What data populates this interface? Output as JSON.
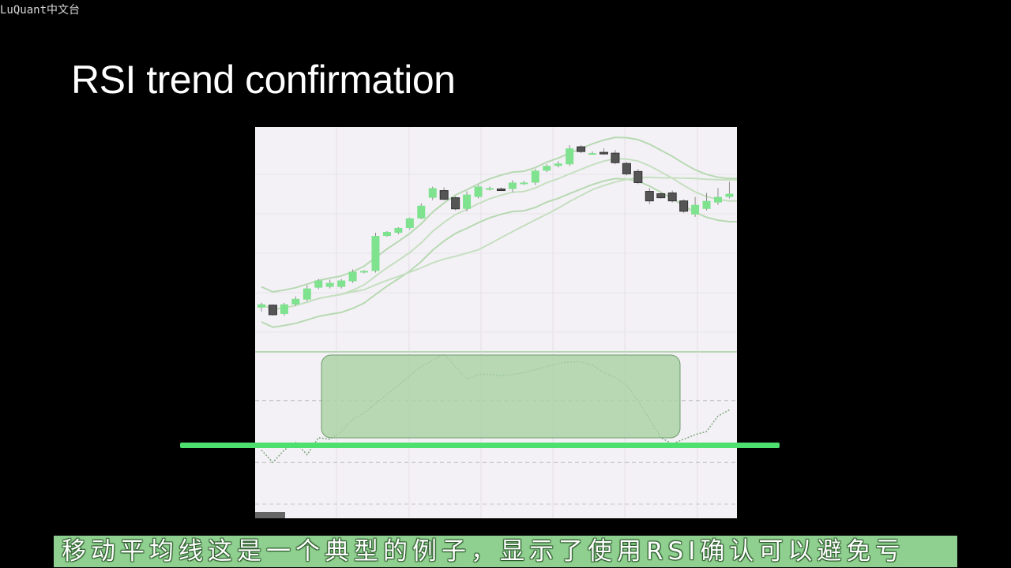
{
  "watermark": "LuQuant中文台",
  "slide": {
    "title": "RSI trend confirmation"
  },
  "subtitle": "移动平均线这是一个典型的例子，显示了使用RSI确认可以避免亏",
  "colors": {
    "background": "#000000",
    "chart_bg": "#f4f1f6",
    "bull_candle": "#7ee28e",
    "bear_candle": "#555555",
    "band": "#b7d9b2",
    "highlight_box": "#a9d2a4",
    "trend_line": "#4ee06e",
    "subtitle_bar": "#8fcf8f"
  },
  "chart_data": {
    "type": "candlestick",
    "price_panel": {
      "candles": [
        {
          "o": 6,
          "h": 12,
          "l": 1,
          "c": 10
        },
        {
          "o": 9,
          "h": 10,
          "l": -4,
          "c": -3
        },
        {
          "o": -2,
          "h": 12,
          "l": -4,
          "c": 10
        },
        {
          "o": 10,
          "h": 20,
          "l": 8,
          "c": 17
        },
        {
          "o": 16,
          "h": 34,
          "l": 14,
          "c": 30
        },
        {
          "o": 31,
          "h": 42,
          "l": 29,
          "c": 40
        },
        {
          "o": 32,
          "h": 41,
          "l": 30,
          "c": 37
        },
        {
          "o": 32,
          "h": 42,
          "l": 30,
          "c": 40
        },
        {
          "o": 39,
          "h": 54,
          "l": 37,
          "c": 51
        },
        {
          "o": 51,
          "h": 53,
          "l": 49,
          "c": 52
        },
        {
          "o": 52,
          "h": 100,
          "l": 50,
          "c": 96
        },
        {
          "o": 96,
          "h": 102,
          "l": 95,
          "c": 101
        },
        {
          "o": 100,
          "h": 107,
          "l": 98,
          "c": 106
        },
        {
          "o": 106,
          "h": 119,
          "l": 104,
          "c": 118
        },
        {
          "o": 118,
          "h": 137,
          "l": 117,
          "c": 134
        },
        {
          "o": 144,
          "h": 158,
          "l": 141,
          "c": 156
        },
        {
          "o": 153,
          "h": 157,
          "l": 141,
          "c": 142
        },
        {
          "o": 144,
          "h": 146,
          "l": 128,
          "c": 130
        },
        {
          "o": 130,
          "h": 152,
          "l": 127,
          "c": 148
        },
        {
          "o": 145,
          "h": 160,
          "l": 143,
          "c": 158
        },
        {
          "o": 155,
          "h": 158,
          "l": 153,
          "c": 156
        },
        {
          "o": 155,
          "h": 157,
          "l": 153,
          "c": 154
        },
        {
          "o": 155,
          "h": 166,
          "l": 151,
          "c": 163
        },
        {
          "o": 162,
          "h": 165,
          "l": 160,
          "c": 163
        },
        {
          "o": 163,
          "h": 180,
          "l": 160,
          "c": 178
        },
        {
          "o": 178,
          "h": 186,
          "l": 176,
          "c": 184
        },
        {
          "o": 184,
          "h": 190,
          "l": 182,
          "c": 187
        },
        {
          "o": 186,
          "h": 210,
          "l": 184,
          "c": 206
        },
        {
          "o": 208,
          "h": 210,
          "l": 200,
          "c": 202
        },
        {
          "o": 200,
          "h": 202,
          "l": 198,
          "c": 200
        },
        {
          "o": 201,
          "h": 206,
          "l": 198,
          "c": 200
        },
        {
          "o": 200,
          "h": 204,
          "l": 186,
          "c": 188
        },
        {
          "o": 187,
          "h": 189,
          "l": 172,
          "c": 174
        },
        {
          "o": 177,
          "h": 180,
          "l": 161,
          "c": 163
        },
        {
          "o": 152,
          "h": 156,
          "l": 136,
          "c": 140
        },
        {
          "o": 149,
          "h": 151,
          "l": 143,
          "c": 144
        },
        {
          "o": 150,
          "h": 153,
          "l": 138,
          "c": 140
        },
        {
          "o": 140,
          "h": 142,
          "l": 125,
          "c": 127
        },
        {
          "o": 123,
          "h": 145,
          "l": 120,
          "c": 135
        },
        {
          "o": 130,
          "h": 150,
          "l": 128,
          "c": 140
        },
        {
          "o": 138,
          "h": 156,
          "l": 135,
          "c": 145
        },
        {
          "o": 145,
          "h": 164,
          "l": 143,
          "c": 149
        }
      ]
    },
    "rsi_panel": {
      "values": [
        38,
        30,
        38,
        43,
        35,
        46,
        45,
        50,
        58,
        62,
        68,
        74,
        80,
        86,
        92,
        96,
        100,
        92,
        84,
        87,
        87,
        86,
        87,
        88,
        90,
        92,
        94,
        95,
        95,
        93,
        88,
        85,
        80,
        70,
        58,
        46,
        42,
        45,
        48,
        50,
        60,
        64
      ],
      "levels": [
        30,
        70
      ]
    }
  }
}
